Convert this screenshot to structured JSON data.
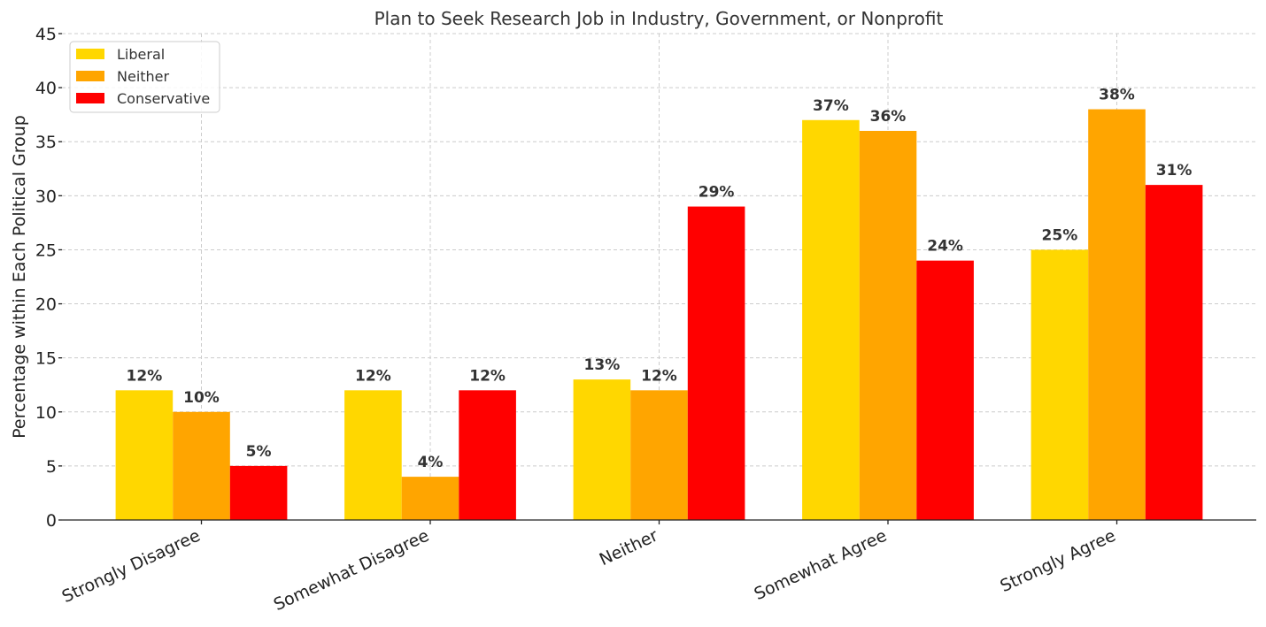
{
  "chart_data": {
    "type": "bar",
    "title": "Plan to Seek Research Job in Industry, Government, or Nonprofit",
    "xlabel": "",
    "ylabel": "Percentage within Each Political Group",
    "ylim": [
      0,
      45
    ],
    "yticks": [
      0,
      5,
      10,
      15,
      20,
      25,
      30,
      35,
      40,
      45
    ],
    "grid": true,
    "legend_position": "top-left",
    "categories": [
      "Strongly Disagree",
      "Somewhat Disagree",
      "Neither",
      "Somewhat Agree",
      "Strongly Agree"
    ],
    "series": [
      {
        "name": "Liberal",
        "color": "#FFD700",
        "values": [
          12,
          12,
          13,
          37,
          25
        ],
        "labels": [
          "12%",
          "12%",
          "13%",
          "37%",
          "25%"
        ]
      },
      {
        "name": "Neither",
        "color": "#FFA500",
        "values": [
          10,
          4,
          12,
          36,
          38
        ],
        "labels": [
          "10%",
          "4%",
          "12%",
          "36%",
          "38%"
        ]
      },
      {
        "name": "Conservative",
        "color": "#FF0000",
        "values": [
          5,
          12,
          29,
          24,
          31
        ],
        "labels": [
          "5%",
          "12%",
          "29%",
          "24%",
          "31%"
        ]
      }
    ]
  }
}
